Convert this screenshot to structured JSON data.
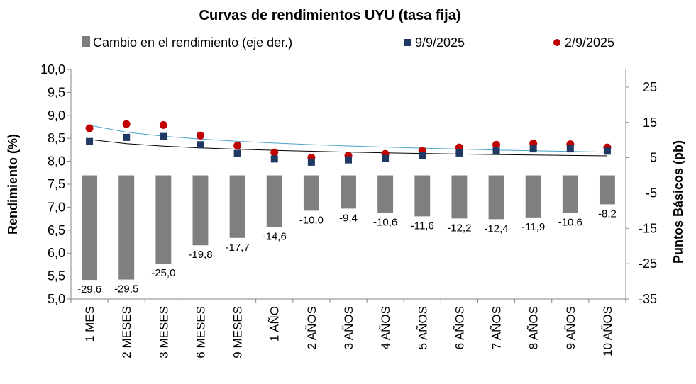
{
  "chart_data": {
    "type": "bar",
    "title": "Curvas de rendimientos UYU (tasa fija)",
    "ylabel": "Rendimiento (%)",
    "y2label": "Puntos Básicos (pb)",
    "ylim": [
      5.0,
      10.0
    ],
    "y2lim": [
      -35,
      30
    ],
    "yticks": [
      "10,0",
      "9,5",
      "9,0",
      "8,5",
      "8,0",
      "7,5",
      "7,0",
      "6,5",
      "6,0",
      "5,5",
      "5,0"
    ],
    "y2ticks": [
      "25",
      "15",
      "5",
      "-5",
      "-15",
      "-25",
      "-35"
    ],
    "categories": [
      "1 MES",
      "2 MESES",
      "3 MESES",
      "6 MESES",
      "9 MESES",
      "1 AÑO",
      "2 AÑOS",
      "3 AÑOS",
      "4 AÑOS",
      "5 AÑOS",
      "6 AÑOS",
      "7 AÑOS",
      "8 AÑOS",
      "9 AÑOS",
      "10 AÑOS"
    ],
    "grid": false,
    "legend_position": "top",
    "series": [
      {
        "name": "Cambio en el rendimiento (eje der.)",
        "kind": "bar",
        "axis": "right",
        "color": "#7f7f7f",
        "values": [
          -29.6,
          -29.5,
          -25.0,
          -19.8,
          -17.7,
          -14.6,
          -10.0,
          -9.4,
          -10.6,
          -11.6,
          -12.2,
          -12.4,
          -11.9,
          -10.6,
          -8.2
        ],
        "labels": [
          "-29,6",
          "-29,5",
          "-25,0",
          "-19,8",
          "-17,7",
          "-14,6",
          "-10,0",
          "-9,4",
          "-10,6",
          "-11,6",
          "-12,2",
          "-12,4",
          "-11,9",
          "-10,6",
          "-8,2"
        ]
      },
      {
        "name": "9/9/2025",
        "kind": "scatter",
        "marker": "square",
        "axis": "left",
        "color": "#1f3864",
        "values": [
          8.43,
          8.52,
          8.54,
          8.36,
          8.17,
          8.05,
          7.98,
          8.03,
          8.06,
          8.12,
          8.18,
          8.23,
          8.27,
          8.27,
          8.22
        ],
        "trendline_color": "#000000"
      },
      {
        "name": "2/9/2025",
        "kind": "scatter",
        "marker": "circle",
        "axis": "left",
        "color": "#c00000",
        "values": [
          8.72,
          8.81,
          8.79,
          8.56,
          8.34,
          8.19,
          8.08,
          8.12,
          8.16,
          8.23,
          8.3,
          8.36,
          8.39,
          8.37,
          8.3
        ],
        "trendline_color": "#4aa3c9"
      }
    ]
  }
}
